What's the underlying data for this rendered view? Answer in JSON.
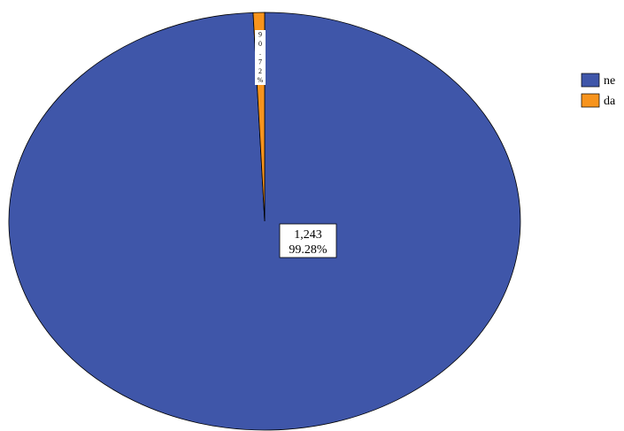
{
  "chart_data": {
    "type": "pie",
    "title": "",
    "slices": [
      {
        "name": "ne",
        "count": 1243,
        "count_label": "1,243",
        "percent": 99.28,
        "percent_label": "99.28%",
        "color": "#3f56a9"
      },
      {
        "name": "da",
        "count": 9,
        "count_label": "9",
        "percent": 0.72,
        "percent_label": "0.72%",
        "color": "#f7941d"
      }
    ],
    "small_slice_label_glyphs": [
      "9",
      "0",
      ".",
      "7",
      "2",
      "%"
    ],
    "legend": {
      "placement": "right",
      "entries": [
        "ne",
        "da"
      ]
    },
    "start_angle": "top",
    "direction": "clockwise"
  }
}
